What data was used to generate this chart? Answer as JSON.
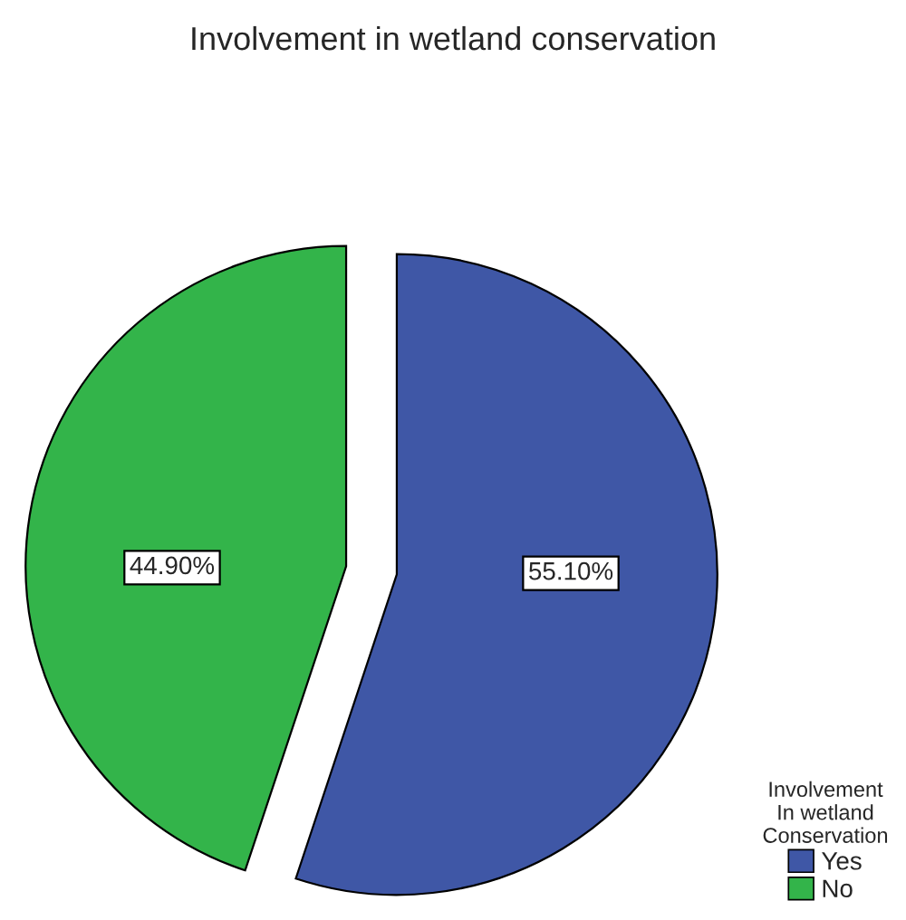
{
  "chart_data": {
    "type": "pie",
    "title": "Involvement in wetland conservation",
    "categories": [
      "Yes",
      "No"
    ],
    "values": [
      55.1,
      44.9
    ],
    "colors": [
      "#3f57a6",
      "#33b44a"
    ],
    "value_labels": [
      "55.10%",
      "44.90%"
    ],
    "legend_title": "Involvement\nIn wetland\nConservation",
    "legend": "bottom right"
  }
}
